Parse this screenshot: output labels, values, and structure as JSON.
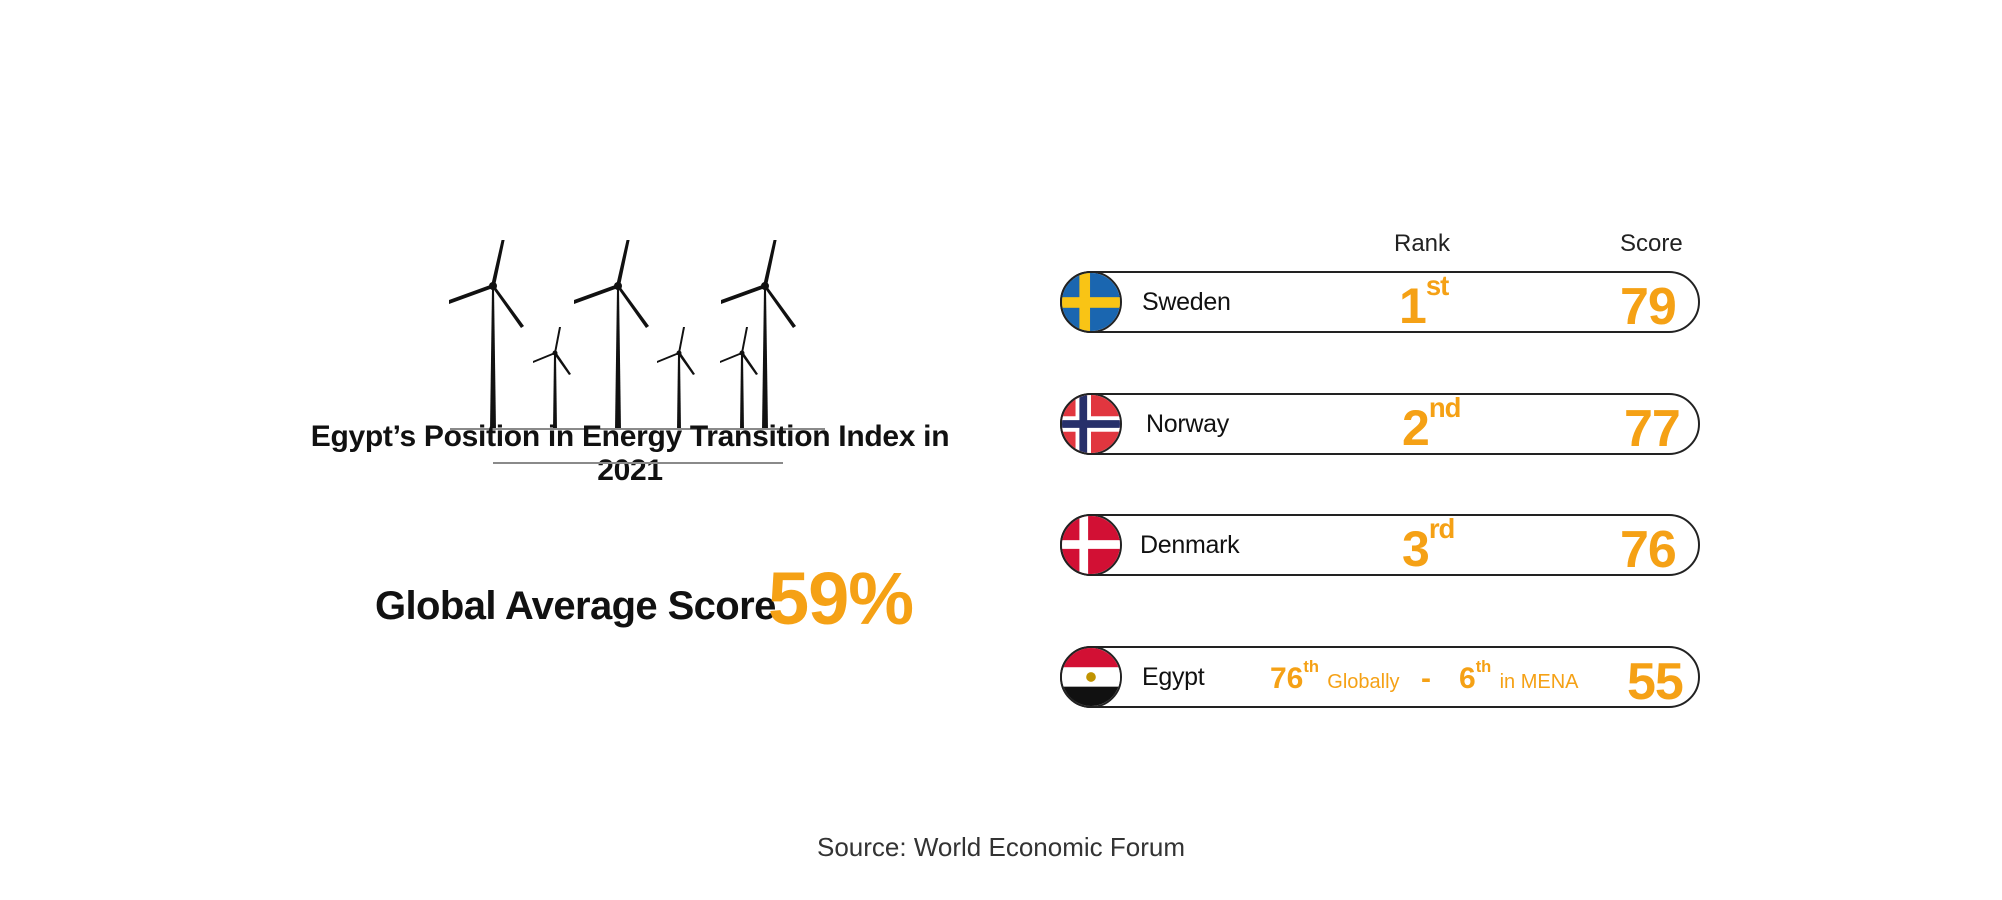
{
  "title": "Egypt’s Position in Energy Transition Index in 2021",
  "global_average": {
    "label": "Global Average Score",
    "value": "59%"
  },
  "table": {
    "rank_header": "Rank",
    "score_header": "Score",
    "rows": [
      {
        "country": "Sweden",
        "flag": "sweden-flag-icon",
        "rank_num": "1",
        "rank_suffix": "st",
        "score": "79"
      },
      {
        "country": "Norway",
        "flag": "norway-flag-icon",
        "rank_num": "2",
        "rank_suffix": "nd",
        "score": "77"
      },
      {
        "country": "Denmark",
        "flag": "denmark-flag-icon",
        "rank_num": "3",
        "rank_suffix": "rd",
        "score": "76"
      }
    ],
    "egypt": {
      "country": "Egypt",
      "flag": "egypt-flag-icon",
      "global_rank_num": "76",
      "global_rank_suffix": "th",
      "global_label": "Globally",
      "separator": "-",
      "mena_rank_num": "6",
      "mena_rank_suffix": "th",
      "mena_label": "in MENA",
      "score": "55"
    }
  },
  "source": "Source: World Economic Forum",
  "colors": {
    "accent": "#f5a115",
    "text": "#111111",
    "outline": "#222222"
  },
  "chart_data": {
    "type": "table",
    "columns": [
      "Rank",
      "Score"
    ],
    "rows": [
      {
        "country": "Sweden",
        "rank": 1,
        "score": 79
      },
      {
        "country": "Norway",
        "rank": 2,
        "score": 77
      },
      {
        "country": "Denmark",
        "rank": 3,
        "score": 76
      },
      {
        "country": "Egypt",
        "rank_global": 76,
        "rank_mena": 6,
        "score": 55
      }
    ],
    "global_average_score_percent": 59
  }
}
